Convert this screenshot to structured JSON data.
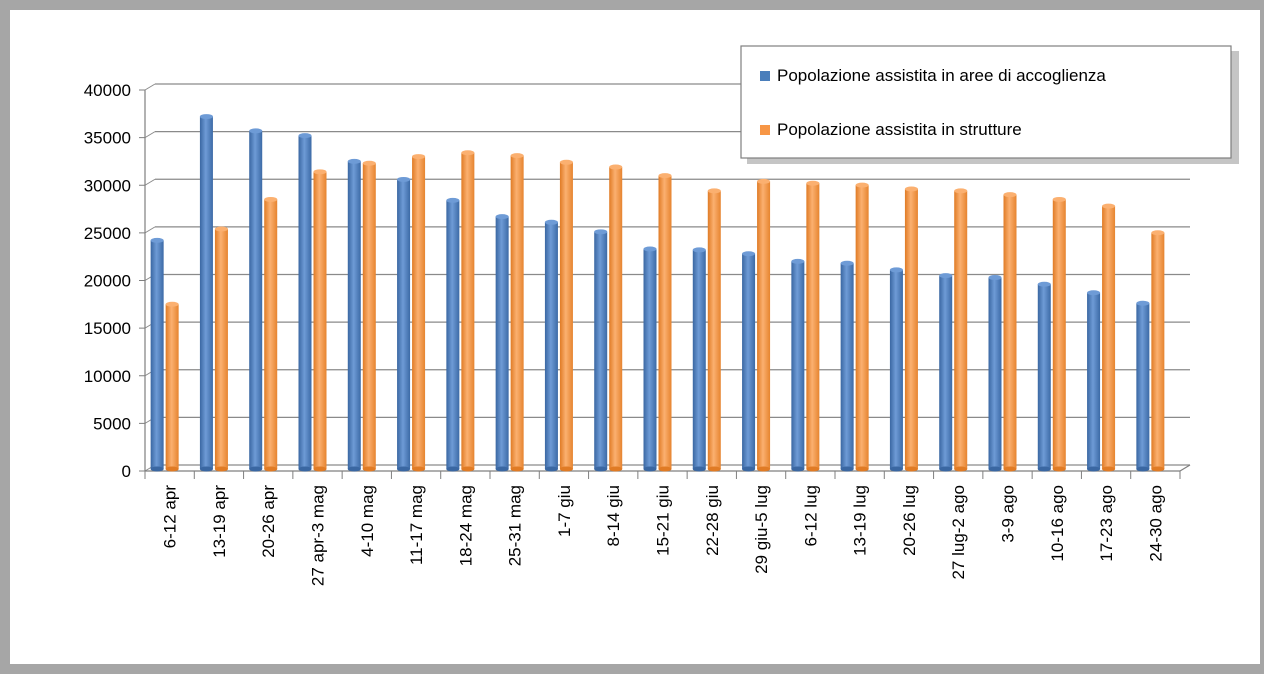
{
  "chart_data": {
    "type": "bar",
    "categories": [
      "6-12 apr",
      "13-19 apr",
      "20-26 apr",
      "27 apr-3 mag",
      "4-10 mag",
      "11-17 mag",
      "18-24 mag",
      "25-31 mag",
      "1-7 giu",
      "8-14 giu",
      "15-21 giu",
      "22-28 giu",
      "29 giu-5 lug",
      "6-12 lug",
      "13-19 lug",
      "20-26 lug",
      "27 lug-2 ago",
      "3-9 ago",
      "10-16 ago",
      "17-23 ago",
      "24-30 ago"
    ],
    "series": [
      {
        "name": "Popolazione assistita in aree di accoglienza",
        "color": "#4a7ebb",
        "values": [
          24000,
          37000,
          35500,
          35000,
          32300,
          30400,
          28200,
          26500,
          25900,
          24900,
          23100,
          23000,
          22600,
          21800,
          21600,
          20900,
          20300,
          20100,
          19400,
          18500,
          17400
        ]
      },
      {
        "name": "Popolazione assistita in strutture",
        "color": "#f79646",
        "values": [
          17300,
          25200,
          28300,
          31200,
          32100,
          32800,
          33200,
          32900,
          32200,
          31700,
          30800,
          29200,
          30200,
          30000,
          29800,
          29400,
          29200,
          28800,
          28300,
          27600,
          24800
        ]
      }
    ],
    "yticks": [
      "0",
      "5000",
      "10000",
      "15000",
      "20000",
      "25000",
      "30000",
      "35000",
      "40000"
    ],
    "ylim": [
      0,
      40000
    ],
    "grid": true,
    "legend_position": "top-right",
    "title": "",
    "xlabel": "",
    "ylabel": ""
  }
}
